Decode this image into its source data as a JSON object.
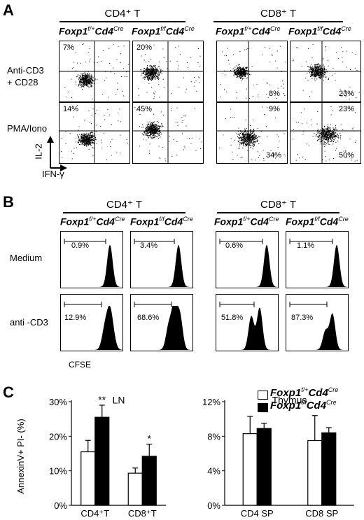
{
  "panelA": {
    "letter": "A",
    "groups": [
      {
        "title": "CD4⁺ T",
        "genotypes": [
          "Foxp1f/+Cd4Cre",
          "Foxp1f/fCd4Cre"
        ]
      },
      {
        "title": "CD8⁺ T",
        "genotypes": [
          "Foxp1f/+Cd4Cre",
          "Foxp1f/fCd4Cre"
        ]
      }
    ],
    "rows": [
      "Anti-CD3\n+ CD28",
      "PMA/Iono"
    ],
    "axes": {
      "y": "IL-2",
      "x": "IFN-γ"
    },
    "percentages": {
      "cd4_het_cd3": "7%",
      "cd4_ko_cd3": "20%",
      "cd8_het_cd3": "8%",
      "cd8_ko_cd3": "23%",
      "cd4_het_pma": "14%",
      "cd4_ko_pma": "45%",
      "cd8_het_pma_top": "9%",
      "cd8_het_pma_bottom": "34%",
      "cd8_ko_pma_top": "23%",
      "cd8_ko_pma_bottom": "50%"
    }
  },
  "panelB": {
    "letter": "B",
    "groups": [
      {
        "title": "CD4⁺ T"
      },
      {
        "title": "CD8⁺ T"
      }
    ],
    "rows": [
      "Medium",
      "anti -CD3"
    ],
    "xlabel": "CFSE",
    "percentages": {
      "medium": [
        "0.9%",
        "3.4%",
        "0.6%",
        "1.1%"
      ],
      "cd3": [
        "12.9%",
        "68.6%",
        "51.8%",
        "87.3%"
      ]
    }
  },
  "panelC": {
    "letter": "C",
    "legend": [
      "Foxp1f/+Cd4Cre",
      "Foxp1f/fCd4Cre"
    ]
  },
  "chart_data": [
    {
      "type": "bar",
      "title": "LN",
      "ylabel": "AnnexinV+ PI- (%)",
      "categories": [
        "CD4⁺T",
        "CD8⁺T"
      ],
      "yticks": [
        "0%",
        "10%",
        "20%",
        "30%"
      ],
      "ylim": [
        0,
        30
      ],
      "series": [
        {
          "name": "Foxp1f/+Cd4Cre",
          "values": [
            15.5,
            9.3
          ],
          "errors": [
            3.3,
            1.5
          ],
          "color": "#ffffff"
        },
        {
          "name": "Foxp1f/fCd4Cre",
          "values": [
            25.5,
            14.2
          ],
          "errors": [
            3.5,
            3.5
          ],
          "color": "#000000"
        }
      ],
      "annotations": [
        "**",
        "*"
      ]
    },
    {
      "type": "bar",
      "title": "Thymus",
      "categories": [
        "CD4 SP",
        "CD8 SP"
      ],
      "yticks": [
        "0%",
        "4%",
        "8%",
        "12%"
      ],
      "ylim": [
        0,
        12
      ],
      "series": [
        {
          "name": "Foxp1f/+Cd4Cre",
          "values": [
            8.3,
            7.5
          ],
          "errors": [
            2.0,
            2.9
          ],
          "color": "#ffffff"
        },
        {
          "name": "Foxp1f/fCd4Cre",
          "values": [
            8.9,
            8.4
          ],
          "errors": [
            0.6,
            0.6
          ],
          "color": "#000000"
        }
      ]
    }
  ]
}
